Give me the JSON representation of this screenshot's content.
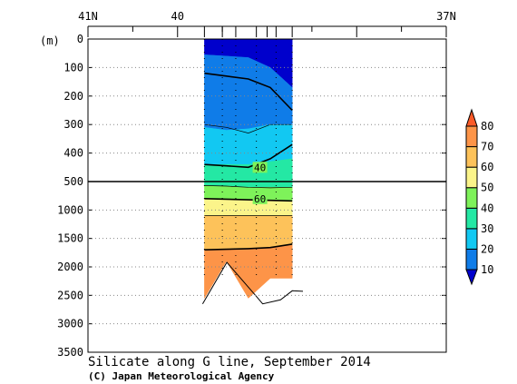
{
  "chart_data": {
    "type": "contour-section",
    "title": "Silicate along G line, September 2014",
    "credit": "(C) Japan Meteorological Agency",
    "y_unit_label": "(m)",
    "x_axis": {
      "labels": [
        {
          "text": "41N",
          "lat": 41
        },
        {
          "text": "40",
          "lat": 40
        },
        {
          "text": "37N",
          "lat": 37
        }
      ],
      "range": [
        41,
        37
      ],
      "station_lats": [
        39.7,
        39.5,
        39.35,
        39.12,
        38.9,
        38.72
      ]
    },
    "y_axis": {
      "upper_ticks": [
        0,
        100,
        200,
        300,
        400,
        500
      ],
      "lower_ticks": [
        1000,
        1500,
        2000,
        2500,
        3000,
        3500
      ],
      "break_depth": 500,
      "range": [
        0,
        3500
      ]
    },
    "colorbar": {
      "levels": [
        10,
        20,
        30,
        40,
        50,
        60,
        70,
        80
      ],
      "colors": [
        "#0000cc",
        "#0f7ce8",
        "#12c8f2",
        "#24e8a4",
        "#7ef25a",
        "#fbf48a",
        "#fdc25a",
        "#fd9448",
        "#fb5a28"
      ]
    },
    "contour_labels": [
      {
        "text": "40",
        "lat": 39.08,
        "depth": 450
      },
      {
        "text": "60",
        "lat": 39.08,
        "depth": 800
      }
    ],
    "section": {
      "lat_start": 39.7,
      "lat_end": 38.72,
      "bands": [
        {
          "class": 0,
          "top": [
            0,
            0,
            0,
            0,
            0
          ],
          "bottom": [
            55,
            60,
            65,
            100,
            170
          ]
        },
        {
          "class": 1,
          "top": [
            55,
            60,
            65,
            100,
            170
          ],
          "bottom": [
            310,
            320,
            315,
            300,
            300
          ]
        },
        {
          "class": 2,
          "top": [
            310,
            320,
            315,
            300,
            300
          ],
          "bottom": [
            440,
            440,
            440,
            430,
            420
          ]
        },
        {
          "class": 3,
          "top": [
            440,
            440,
            440,
            430,
            420
          ],
          "bottom": [
            570,
            580,
            600,
            600,
            600
          ]
        },
        {
          "class": 4,
          "top": [
            570,
            580,
            600,
            600,
            600
          ],
          "bottom": [
            800,
            810,
            820,
            830,
            840
          ]
        },
        {
          "class": 5,
          "top": [
            800,
            810,
            820,
            830,
            840
          ],
          "bottom": [
            1100,
            1100,
            1100,
            1100,
            1100
          ]
        },
        {
          "class": 6,
          "top": [
            1100,
            1100,
            1100,
            1100,
            1100
          ],
          "bottom": [
            1700,
            1690,
            1680,
            1660,
            1620
          ]
        },
        {
          "class": 7,
          "top": [
            1700,
            1690,
            1680,
            1660,
            1620
          ],
          "bottom": [
            2550,
            1900,
            2550,
            2200,
            2200
          ]
        }
      ],
      "contour_lines": [
        {
          "value": 20,
          "depths": [
            120,
            130,
            140,
            170,
            250
          ]
        },
        {
          "value": 30,
          "depths": [
            300,
            310,
            330,
            300,
            300
          ]
        },
        {
          "value": 40,
          "depths": [
            440,
            445,
            450,
            420,
            370
          ]
        },
        {
          "value": 50,
          "depths": [
            570,
            580,
            600,
            610,
            600
          ]
        },
        {
          "value": 60,
          "depths": [
            800,
            810,
            820,
            830,
            840
          ]
        },
        {
          "value": 70,
          "depths": [
            1100,
            1100,
            1100,
            1100,
            1100
          ]
        },
        {
          "value": 80,
          "depths": [
            1700,
            1690,
            1680,
            1660,
            1600
          ]
        }
      ],
      "bottom_line": [
        {
          "lat": 39.72,
          "depth": 2650
        },
        {
          "lat": 39.45,
          "depth": 1920
        },
        {
          "lat": 39.12,
          "depth": 2520
        },
        {
          "lat": 39.05,
          "depth": 2650
        },
        {
          "lat": 38.85,
          "depth": 2580
        },
        {
          "lat": 38.72,
          "depth": 2420
        },
        {
          "lat": 38.6,
          "depth": 2430
        }
      ]
    }
  }
}
